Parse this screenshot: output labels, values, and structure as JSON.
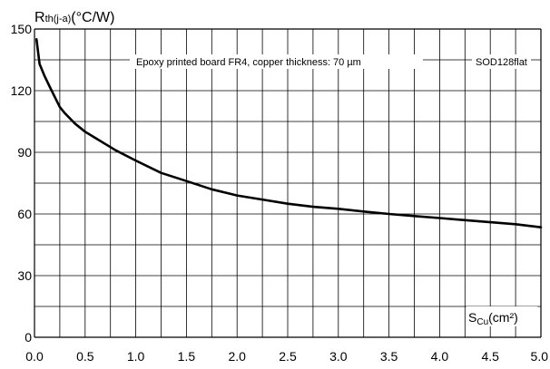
{
  "chart_data": {
    "type": "line",
    "title": "",
    "ylabel": {
      "main": "R",
      "sub": "th(j-a)",
      "unit": "(°C/W)"
    },
    "xlabel": {
      "main": "S",
      "sub": "Cu",
      "unit": "(cm²)"
    },
    "annotations": {
      "condition": "Epoxy printed board FR4, copper thickness: 70 µm",
      "package": "SOD128flat"
    },
    "xlim": [
      0,
      5
    ],
    "ylim": [
      0,
      150
    ],
    "x_ticks": [
      "0.0",
      "0.5",
      "1.0",
      "1.5",
      "2.0",
      "2.5",
      "3.0",
      "3.5",
      "4.0",
      "4.5",
      "5.0"
    ],
    "y_ticks": [
      "0",
      "30",
      "60",
      "90",
      "120",
      "150"
    ],
    "grid": true,
    "series": [
      {
        "x": [
          0.02,
          0.05,
          0.1,
          0.15,
          0.2,
          0.25,
          0.3,
          0.4,
          0.5,
          0.6,
          0.8,
          1.0,
          1.25,
          1.5,
          1.75,
          2.0,
          2.25,
          2.5,
          2.75,
          3.0,
          3.25,
          3.5,
          3.75,
          4.0,
          4.25,
          4.5,
          4.75,
          5.0
        ],
        "y": [
          145,
          133,
          127,
          122,
          117,
          112,
          109,
          104,
          100,
          97,
          91,
          86,
          80,
          76,
          72,
          69,
          67,
          65,
          63.5,
          62.5,
          61.2,
          60,
          59,
          58,
          57,
          56,
          55,
          53.5
        ]
      }
    ]
  }
}
